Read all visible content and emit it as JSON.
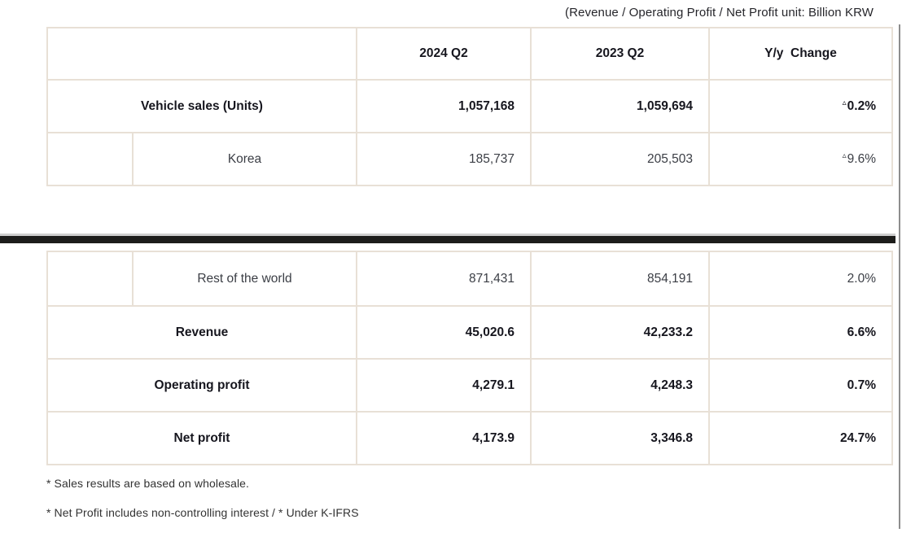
{
  "unit_note": "(Revenue / Operating Profit / Net Profit unit: Billion KRW",
  "table": {
    "negative_marker": "▵",
    "header": {
      "col_blank": "",
      "col_2024": "2024 Q2",
      "col_2023": "2023 Q2",
      "col_yoy": "Y/y  Change"
    },
    "top_rows": [
      {
        "label": "Vehicle sales (Units)",
        "indented": false,
        "emphasis": true,
        "values": [
          "1,057,168",
          "1,059,694"
        ],
        "yoy": "0.2%",
        "negative": true
      },
      {
        "label": "Korea",
        "indented": true,
        "emphasis": false,
        "values": [
          "185,737",
          "205,503"
        ],
        "yoy": "9.6%",
        "negative": true
      }
    ],
    "bottom_rows": [
      {
        "label": "Rest of the world",
        "indented": true,
        "emphasis": false,
        "values": [
          "871,431",
          "854,191"
        ],
        "yoy": "2.0%",
        "negative": false
      },
      {
        "label": "Revenue",
        "indented": false,
        "emphasis": true,
        "values": [
          "45,020.6",
          "42,233.2"
        ],
        "yoy": "6.6%",
        "negative": false
      },
      {
        "label": "Operating profit",
        "indented": false,
        "emphasis": true,
        "values": [
          "4,279.1",
          "4,248.3"
        ],
        "yoy": "0.7%",
        "negative": false
      },
      {
        "label": "Net profit",
        "indented": false,
        "emphasis": true,
        "values": [
          "4,173.9",
          "3,346.8"
        ],
        "yoy": "24.7%",
        "negative": false
      }
    ]
  },
  "footnotes": [
    "* Sales results are based on wholesale.",
    "* Net Profit includes non-controlling interest / * Under K-IFRS"
  ],
  "colors": {
    "table_border": "#e8e0d6",
    "divider_bar": "#1d1d1b",
    "page_edge": "#8d8d8d"
  }
}
